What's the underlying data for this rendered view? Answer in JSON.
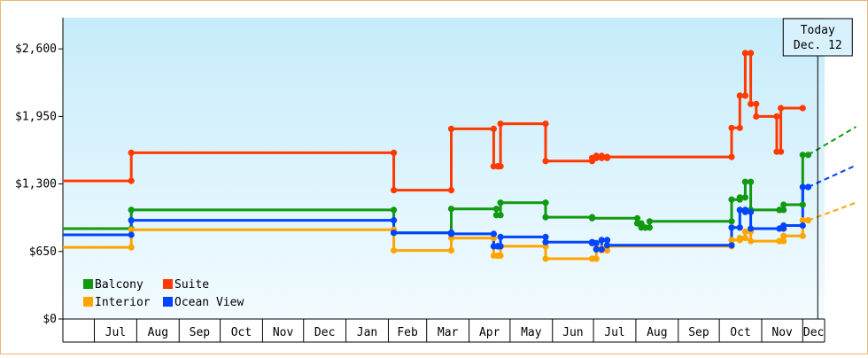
{
  "chart_data": {
    "type": "line",
    "step": true,
    "y_axis": {
      "min": 0,
      "max": 2900,
      "ticks": [
        0,
        650,
        1300,
        1950,
        2600
      ],
      "tick_labels": [
        "$0",
        "$650",
        "$1,300",
        "$1,950",
        "$2,600"
      ]
    },
    "x_axis": {
      "months": [
        "Jul",
        "Aug",
        "Sep",
        "Oct",
        "Nov",
        "Dec",
        "Jan",
        "Feb",
        "Mar",
        "Apr",
        "May",
        "Jun",
        "Jul",
        "Aug",
        "Sep",
        "Oct",
        "Nov",
        "Dec"
      ],
      "month_start_days": [
        0,
        31,
        62,
        92,
        123,
        153,
        184,
        215,
        243,
        274,
        304,
        335,
        365,
        396,
        427,
        457,
        488,
        518
      ],
      "domain_days": [
        -23,
        534
      ]
    },
    "grid": false,
    "legend_position": "bottom-left",
    "today": {
      "line1": "Today",
      "line2": "Dec. 12",
      "day": 529
    },
    "series": [
      {
        "name": "Balcony",
        "color": "#119911",
        "points": [
          [
            -23,
            870
          ],
          [
            27,
            870
          ],
          [
            27,
            1050
          ],
          [
            219,
            1050
          ],
          [
            219,
            830
          ],
          [
            261,
            830
          ],
          [
            261,
            1060
          ],
          [
            294,
            1060
          ],
          [
            294,
            1000
          ],
          [
            297,
            1000
          ],
          [
            297,
            1120
          ],
          [
            330,
            1120
          ],
          [
            330,
            980
          ],
          [
            364,
            980
          ],
          [
            364,
            970
          ],
          [
            397,
            970
          ],
          [
            397,
            920
          ],
          [
            400,
            920
          ],
          [
            400,
            880
          ],
          [
            403,
            880
          ],
          [
            403,
            880
          ],
          [
            406,
            880
          ],
          [
            406,
            940
          ],
          [
            466,
            940
          ],
          [
            466,
            1150
          ],
          [
            472,
            1150
          ],
          [
            472,
            1170
          ],
          [
            476,
            1170
          ],
          [
            476,
            1320
          ],
          [
            480,
            1320
          ],
          [
            480,
            1050
          ],
          [
            501,
            1050
          ],
          [
            501,
            1050
          ],
          [
            504,
            1050
          ],
          [
            504,
            1100
          ],
          [
            518,
            1100
          ],
          [
            518,
            1580
          ],
          [
            522,
            1580
          ]
        ],
        "projection": [
          [
            522,
            1580
          ],
          [
            557,
            1850
          ]
        ]
      },
      {
        "name": "Suite",
        "color": "#ff3a00",
        "points": [
          [
            -23,
            1330
          ],
          [
            27,
            1330
          ],
          [
            27,
            1600
          ],
          [
            219,
            1600
          ],
          [
            219,
            1240
          ],
          [
            261,
            1240
          ],
          [
            261,
            1830
          ],
          [
            292,
            1830
          ],
          [
            292,
            1470
          ],
          [
            295,
            1470
          ],
          [
            295,
            1470
          ],
          [
            297,
            1470
          ],
          [
            297,
            1880
          ],
          [
            330,
            1880
          ],
          [
            330,
            1520
          ],
          [
            364,
            1520
          ],
          [
            364,
            1550
          ],
          [
            367,
            1550
          ],
          [
            367,
            1570
          ],
          [
            371,
            1570
          ],
          [
            371,
            1550
          ],
          [
            375,
            1550
          ],
          [
            375,
            1560
          ],
          [
            466,
            1560
          ],
          [
            466,
            1840
          ],
          [
            472,
            1840
          ],
          [
            472,
            2150
          ],
          [
            476,
            2150
          ],
          [
            476,
            2560
          ],
          [
            480,
            2560
          ],
          [
            480,
            2070
          ],
          [
            484,
            2070
          ],
          [
            484,
            1950
          ],
          [
            499,
            1950
          ],
          [
            499,
            1610
          ],
          [
            502,
            1610
          ],
          [
            502,
            2030
          ],
          [
            518,
            2030
          ]
        ],
        "projection": []
      },
      {
        "name": "Interior",
        "color": "#ffa500",
        "points": [
          [
            -23,
            690
          ],
          [
            27,
            690
          ],
          [
            27,
            860
          ],
          [
            219,
            860
          ],
          [
            219,
            660
          ],
          [
            261,
            660
          ],
          [
            261,
            780
          ],
          [
            292,
            780
          ],
          [
            292,
            610
          ],
          [
            295,
            610
          ],
          [
            295,
            610
          ],
          [
            297,
            610
          ],
          [
            297,
            700
          ],
          [
            330,
            700
          ],
          [
            330,
            580
          ],
          [
            364,
            580
          ],
          [
            364,
            580
          ],
          [
            367,
            580
          ],
          [
            367,
            680
          ],
          [
            371,
            680
          ],
          [
            371,
            660
          ],
          [
            375,
            660
          ],
          [
            375,
            700
          ],
          [
            466,
            700
          ],
          [
            466,
            760
          ],
          [
            472,
            760
          ],
          [
            472,
            780
          ],
          [
            476,
            780
          ],
          [
            476,
            840
          ],
          [
            480,
            840
          ],
          [
            480,
            750
          ],
          [
            501,
            750
          ],
          [
            501,
            750
          ],
          [
            504,
            750
          ],
          [
            504,
            800
          ],
          [
            518,
            800
          ],
          [
            518,
            950
          ],
          [
            522,
            950
          ]
        ],
        "projection": [
          [
            522,
            950
          ],
          [
            557,
            1120
          ]
        ]
      },
      {
        "name": "Ocean View",
        "color": "#0044ff",
        "points": [
          [
            -23,
            810
          ],
          [
            27,
            810
          ],
          [
            27,
            950
          ],
          [
            219,
            950
          ],
          [
            219,
            830
          ],
          [
            261,
            830
          ],
          [
            261,
            820
          ],
          [
            292,
            820
          ],
          [
            292,
            700
          ],
          [
            295,
            700
          ],
          [
            295,
            700
          ],
          [
            297,
            700
          ],
          [
            297,
            790
          ],
          [
            330,
            790
          ],
          [
            330,
            740
          ],
          [
            364,
            740
          ],
          [
            364,
            730
          ],
          [
            367,
            730
          ],
          [
            367,
            670
          ],
          [
            371,
            670
          ],
          [
            371,
            760
          ],
          [
            375,
            760
          ],
          [
            375,
            710
          ],
          [
            466,
            710
          ],
          [
            466,
            880
          ],
          [
            472,
            880
          ],
          [
            472,
            1050
          ],
          [
            476,
            1050
          ],
          [
            476,
            1030
          ],
          [
            480,
            1030
          ],
          [
            480,
            870
          ],
          [
            501,
            870
          ],
          [
            501,
            870
          ],
          [
            504,
            870
          ],
          [
            504,
            900
          ],
          [
            518,
            900
          ],
          [
            518,
            1270
          ],
          [
            522,
            1270
          ]
        ],
        "projection": [
          [
            522,
            1270
          ],
          [
            557,
            1480
          ]
        ]
      }
    ]
  }
}
